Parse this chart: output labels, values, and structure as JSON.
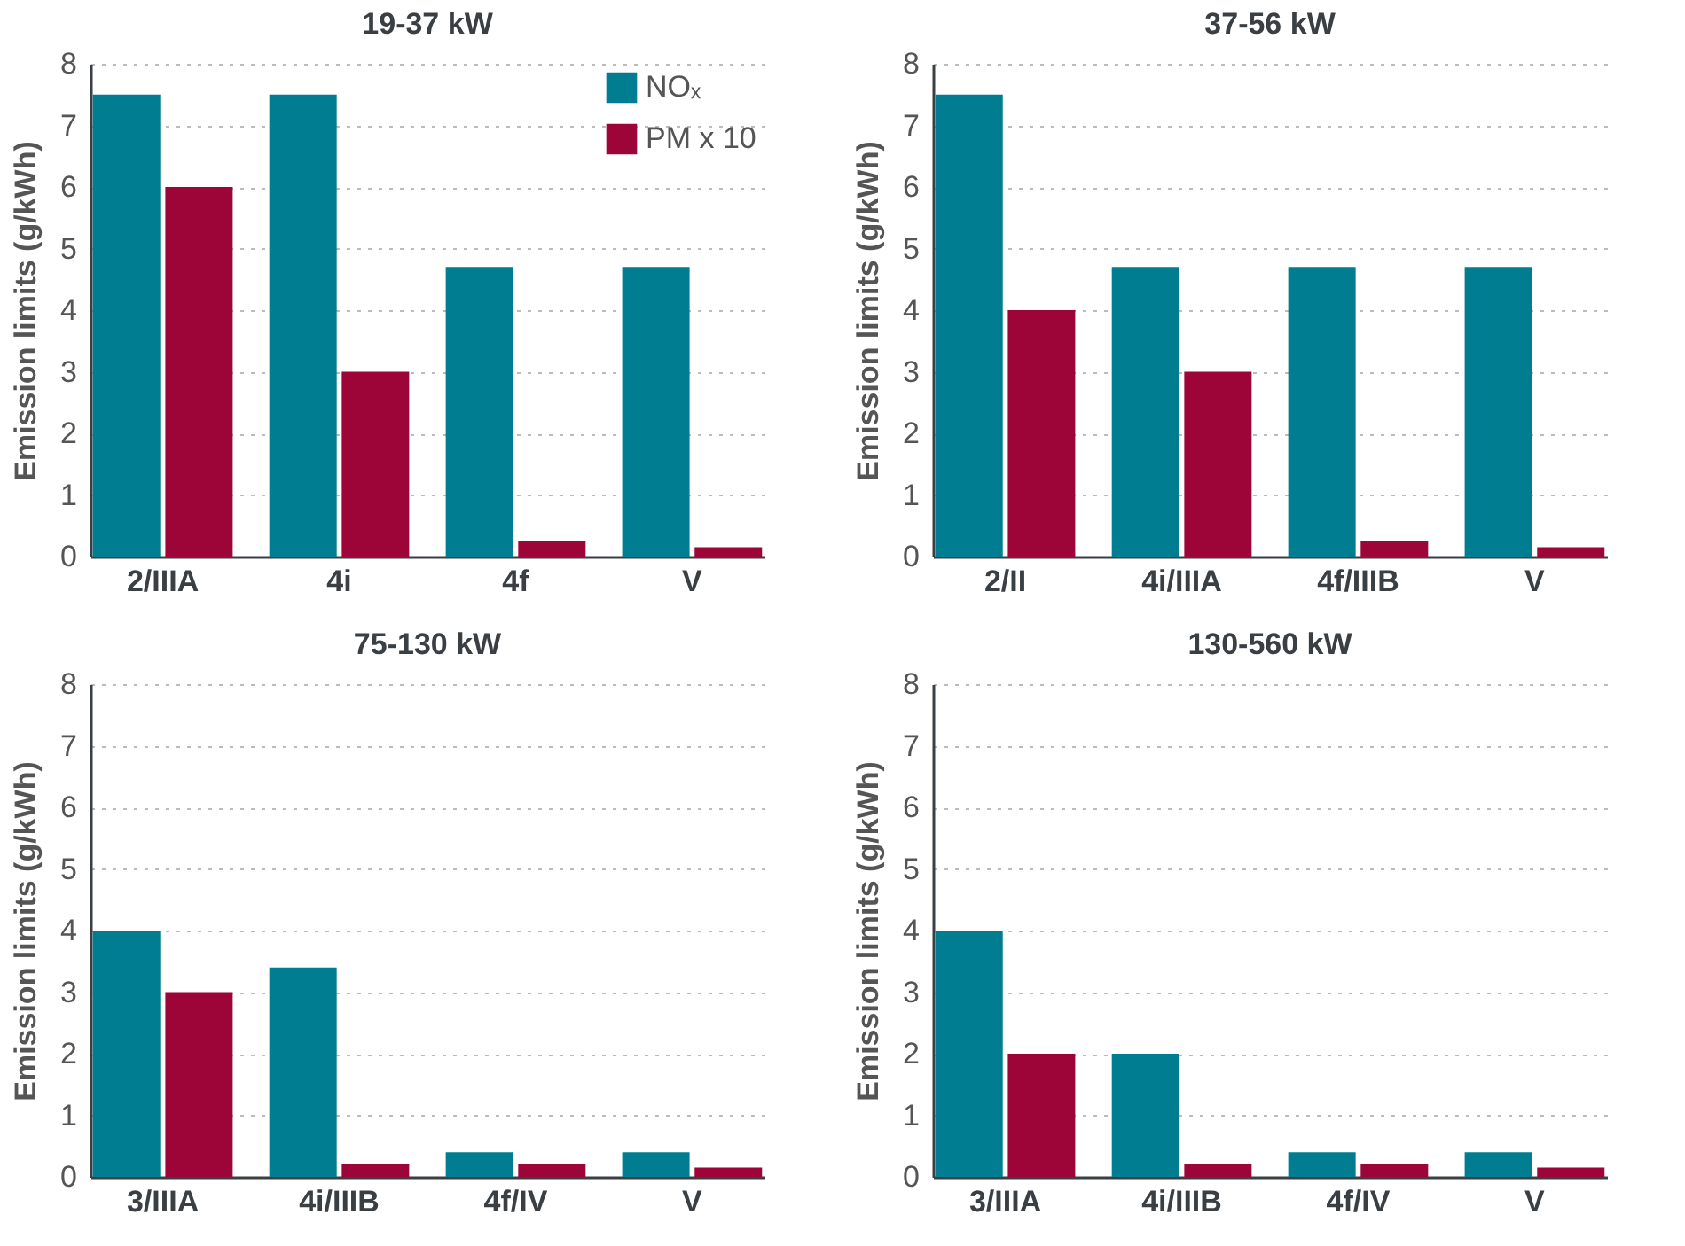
{
  "chart_data": [
    {
      "type": "bar",
      "title": "19-37 kW",
      "ylabel": "Emission limits (g/kWh)",
      "categories": [
        "2/IIIA",
        "4i",
        "4f",
        "V"
      ],
      "series": [
        {
          "name": "NOₓ",
          "color": "#007d91",
          "values": [
            7.5,
            7.5,
            4.7,
            4.7
          ]
        },
        {
          "name": "PM x 10",
          "color": "#9d0539",
          "values": [
            6,
            3,
            0.25,
            0.15
          ]
        }
      ],
      "ylim": [
        0,
        8
      ],
      "yticks": [
        0,
        1,
        2,
        3,
        4,
        5,
        6,
        7,
        8
      ],
      "grid": "y",
      "legend": "top right"
    },
    {
      "type": "bar",
      "title": "37-56 kW",
      "ylabel": "Emission limits (g/kWh)",
      "categories": [
        "2/II",
        "4i/IIIA",
        "4f/IIIB",
        "V"
      ],
      "series": [
        {
          "color": "#007d91",
          "values": [
            7.5,
            4.7,
            4.7,
            4.7
          ]
        },
        {
          "color": "#9d0539",
          "values": [
            4,
            3,
            0.25,
            0.15
          ]
        }
      ],
      "ylim": [
        0,
        8
      ],
      "yticks": [
        0,
        1,
        2,
        3,
        4,
        5,
        6,
        7,
        8
      ],
      "grid": "y"
    },
    {
      "type": "bar",
      "title": "75-130 kW",
      "ylabel": "Emission limits (g/kWh)",
      "categories": [
        "3/IIIA",
        "4i/IIIB",
        "4f/IV",
        "V"
      ],
      "series": [
        {
          "color": "#007d91",
          "values": [
            4,
            3.4,
            0.4,
            0.4
          ]
        },
        {
          "color": "#9d0539",
          "values": [
            3,
            0.2,
            0.2,
            0.15
          ]
        }
      ],
      "ylim": [
        0,
        8
      ],
      "yticks": [
        0,
        1,
        2,
        3,
        4,
        5,
        6,
        7,
        8
      ],
      "grid": "y"
    },
    {
      "type": "bar",
      "title": "130-560 kW",
      "ylabel": "Emission limits (g/kWh)",
      "categories": [
        "3/IIIA",
        "4i/IIIB",
        "4f/IV",
        "V"
      ],
      "series": [
        {
          "color": "#007d91",
          "values": [
            4,
            2,
            0.4,
            0.4
          ]
        },
        {
          "color": "#9d0539",
          "values": [
            2,
            0.2,
            0.2,
            0.15
          ]
        }
      ],
      "ylim": [
        0,
        8
      ],
      "yticks": [
        0,
        1,
        2,
        3,
        4,
        5,
        6,
        7,
        8
      ],
      "grid": "y"
    }
  ]
}
